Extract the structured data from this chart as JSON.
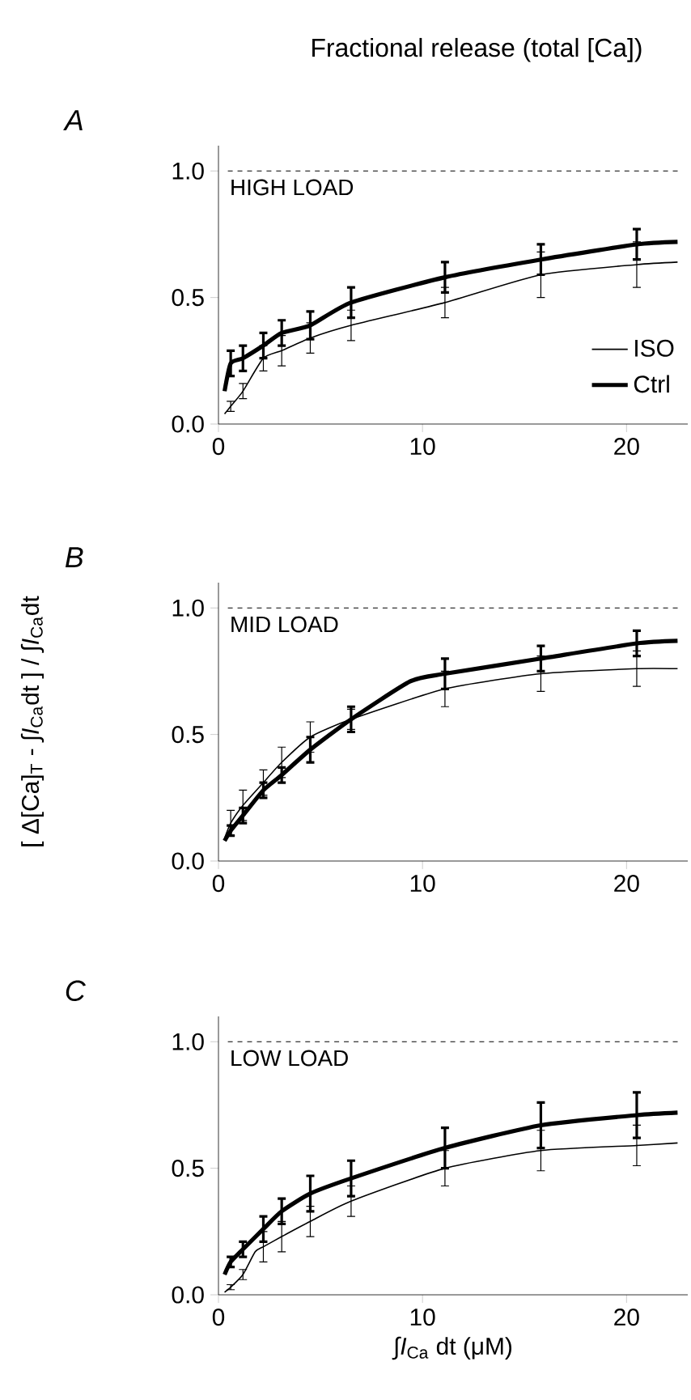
{
  "chart_data": [
    {
      "type": "line",
      "title": "A",
      "subtitle": "Fractional release (total [Ca])",
      "xlim": [
        0,
        23
      ],
      "ylim": [
        0,
        1.1
      ],
      "xticks": [
        0,
        10,
        20
      ],
      "yticks": [
        {
          "value": 0,
          "label": "0.0"
        },
        {
          "value": 0.5,
          "label": "0.5"
        },
        {
          "value": 1,
          "label": "1.0"
        }
      ],
      "legend": "bottom right",
      "ref_lines": [
        {
          "axis": "y",
          "value": 1,
          "label": "HIGH LOAD",
          "line_style": "dashed"
        }
      ],
      "series": [
        {
          "name": "ISO",
          "color": "#000000",
          "x": [
            0.3,
            0.6,
            1.2,
            2.2,
            3.1,
            4.5,
            6.5,
            11.1,
            15.8,
            20.5,
            22.5
          ],
          "values": [
            0.04,
            0.07,
            0.13,
            0.26,
            0.29,
            0.34,
            0.39,
            0.48,
            0.59,
            0.63,
            0.64
          ],
          "errors": [
            null,
            0.02,
            0.03,
            0.05,
            0.06,
            0.06,
            0.06,
            0.06,
            0.09,
            0.09,
            null
          ]
        },
        {
          "name": "Ctrl",
          "color": "#000000",
          "x": [
            0.3,
            0.6,
            1.2,
            2.2,
            3.1,
            4.5,
            6.5,
            11.1,
            15.8,
            20.5,
            22.5
          ],
          "values": [
            0.13,
            0.24,
            0.26,
            0.31,
            0.36,
            0.39,
            0.48,
            0.58,
            0.65,
            0.71,
            0.72
          ],
          "errors": [
            null,
            0.05,
            0.05,
            0.05,
            0.05,
            0.055,
            0.06,
            0.06,
            0.06,
            0.06,
            null
          ]
        }
      ]
    },
    {
      "type": "line",
      "title": "B",
      "ylabel": "[ Δ[Ca]$_{T}$ - ∫*I*$_{Ca}$dt ] / ∫*I*$_{Ca}$dt",
      "xlim": [
        0,
        23
      ],
      "ylim": [
        0,
        1.1
      ],
      "xticks": [
        0,
        10,
        20
      ],
      "yticks": [
        {
          "value": 0,
          "label": "0.0"
        },
        {
          "value": 0.5,
          "label": "0.5"
        },
        {
          "value": 1,
          "label": "1.0"
        }
      ],
      "ref_lines": [
        {
          "axis": "y",
          "value": 1,
          "label": "MID LOAD",
          "line_style": "dashed"
        }
      ],
      "series": [
        {
          "color": "#000000",
          "x": [
            0.3,
            0.6,
            1.2,
            2.2,
            3.1,
            4.5,
            6.5,
            11.1,
            15.8,
            20.5,
            22.5
          ],
          "values": [
            0.09,
            0.15,
            0.22,
            0.31,
            0.39,
            0.49,
            0.56,
            0.68,
            0.74,
            0.76,
            0.76
          ],
          "errors": [
            null,
            0.05,
            0.06,
            0.05,
            0.06,
            0.06,
            0.04,
            0.07,
            0.07,
            0.07,
            null
          ]
        },
        {
          "color": "#000000",
          "x": [
            0.3,
            0.6,
            1.2,
            2.2,
            3.1,
            4.5,
            6.5,
            9.4,
            11.1,
            15.8,
            20.5,
            22.5
          ],
          "values": [
            0.08,
            0.12,
            0.18,
            0.28,
            0.34,
            0.44,
            0.56,
            0.71,
            0.74,
            0.8,
            0.86,
            0.87
          ],
          "errors": [
            null,
            0.02,
            0.03,
            0.03,
            0.03,
            0.05,
            0.05,
            null,
            0.06,
            0.05,
            0.05,
            null
          ]
        }
      ]
    },
    {
      "type": "line",
      "title": "C",
      "xlabel": "∫*I*$_{Ca}$ dt (μM)",
      "xlim": [
        0,
        23
      ],
      "ylim": [
        0,
        1.1
      ],
      "xticks": [
        0,
        10,
        20
      ],
      "yticks": [
        {
          "value": 0,
          "label": "0.0"
        },
        {
          "value": 0.5,
          "label": "0.5"
        },
        {
          "value": 1,
          "label": "1.0"
        }
      ],
      "ref_lines": [
        {
          "axis": "y",
          "value": 1,
          "label": "LOW LOAD",
          "line_style": "dashed"
        }
      ],
      "series": [
        {
          "color": "#000000",
          "x": [
            0.3,
            0.6,
            1.2,
            1.8,
            2.2,
            3.1,
            4.5,
            6.5,
            11.1,
            15.8,
            20.5,
            22.5
          ],
          "values": [
            0.01,
            0.03,
            0.08,
            0.17,
            0.19,
            0.23,
            0.29,
            0.37,
            0.5,
            0.57,
            0.59,
            0.6
          ],
          "errors": [
            null,
            0.01,
            0.02,
            null,
            0.06,
            0.06,
            0.06,
            0.06,
            0.07,
            0.08,
            0.08,
            null
          ]
        },
        {
          "color": "#000000",
          "x": [
            0.3,
            0.6,
            1.2,
            2.2,
            3.1,
            4.5,
            6.5,
            11.1,
            15.8,
            20.5,
            22.5
          ],
          "values": [
            0.08,
            0.13,
            0.18,
            0.26,
            0.33,
            0.4,
            0.46,
            0.58,
            0.67,
            0.71,
            0.72
          ],
          "errors": [
            null,
            0.02,
            0.03,
            0.05,
            0.05,
            0.07,
            0.07,
            0.08,
            0.09,
            0.09,
            null
          ]
        }
      ]
    }
  ]
}
